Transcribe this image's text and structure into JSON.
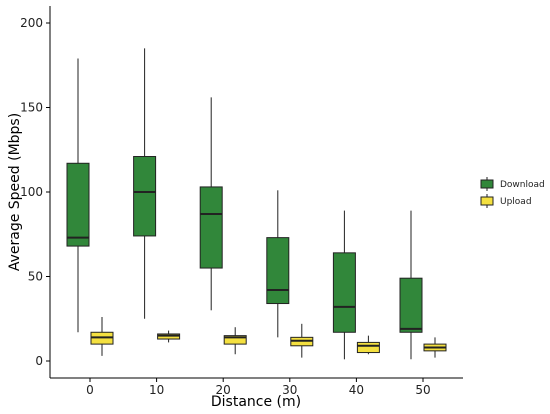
{
  "chart_data": {
    "type": "box",
    "xlabel": "Distance (m)",
    "ylabel": "Average Speed (Mbps)",
    "ylim": [
      -10,
      210
    ],
    "yticks": [
      0,
      50,
      100,
      150,
      200
    ],
    "categories": [
      "0",
      "10",
      "20",
      "30",
      "40",
      "50"
    ],
    "grid": false,
    "legend_position": "right",
    "series": [
      {
        "name": "Download",
        "color": "#31873a",
        "boxes": [
          {
            "whisker_low": 17,
            "q1": 68,
            "median": 73,
            "q3": 117,
            "whisker_high": 179
          },
          {
            "whisker_low": 25,
            "q1": 74,
            "median": 100,
            "q3": 121,
            "whisker_high": 185
          },
          {
            "whisker_low": 30,
            "q1": 55,
            "median": 87,
            "q3": 103,
            "whisker_high": 156
          },
          {
            "whisker_low": 14,
            "q1": 34,
            "median": 42,
            "q3": 73,
            "whisker_high": 101
          },
          {
            "whisker_low": 1,
            "q1": 17,
            "median": 32,
            "q3": 64,
            "whisker_high": 89
          },
          {
            "whisker_low": 1,
            "q1": 17,
            "median": 19,
            "q3": 49,
            "whisker_high": 89
          }
        ]
      },
      {
        "name": "Upload",
        "color": "#f4e040",
        "boxes": [
          {
            "whisker_low": 3,
            "q1": 10,
            "median": 14,
            "q3": 17,
            "whisker_high": 26
          },
          {
            "whisker_low": 11,
            "q1": 13,
            "median": 15,
            "q3": 16,
            "whisker_high": 18
          },
          {
            "whisker_low": 4,
            "q1": 10,
            "median": 14,
            "q3": 15,
            "whisker_high": 20
          },
          {
            "whisker_low": 2,
            "q1": 9,
            "median": 12,
            "q3": 14,
            "whisker_high": 22
          },
          {
            "whisker_low": 4,
            "q1": 5,
            "median": 9,
            "q3": 11,
            "whisker_high": 15
          },
          {
            "whisker_low": 2,
            "q1": 6,
            "median": 8,
            "q3": 10,
            "whisker_high": 14
          }
        ]
      }
    ]
  }
}
